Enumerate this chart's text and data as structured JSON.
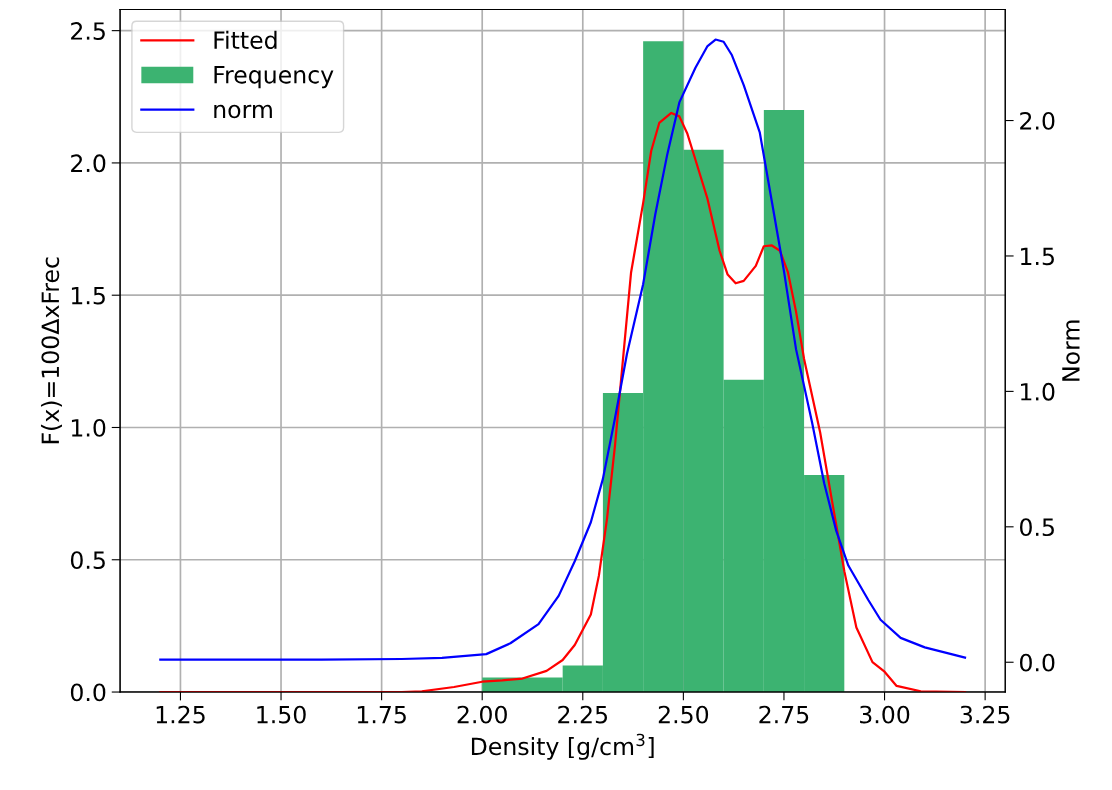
{
  "chart_data": {
    "type": "histogram",
    "xlabel": "Density [g/cm$^{3}$]",
    "ylabel": "F(x)=100ΔxFrec",
    "y2label": "Norm",
    "xlim": [
      1.1,
      3.3
    ],
    "xticks": [
      {
        "value": 1.25,
        "label": "1.25"
      },
      {
        "value": 1.5,
        "label": "1.50"
      },
      {
        "value": 1.75,
        "label": "1.75"
      },
      {
        "value": 2.0,
        "label": "2.00"
      },
      {
        "value": 2.25,
        "label": "2.25"
      },
      {
        "value": 2.5,
        "label": "2.50"
      },
      {
        "value": 2.75,
        "label": "2.75"
      },
      {
        "value": 3.0,
        "label": "3.00"
      },
      {
        "value": 3.25,
        "label": "3.25"
      }
    ],
    "ylim": [
      0,
      2.58
    ],
    "yticks": [
      {
        "value": 0,
        "label": "0.0"
      },
      0.5,
      {
        "value": 1,
        "label": "1.0"
      },
      1.5,
      {
        "value": 2,
        "label": "2.0"
      },
      2.5
    ],
    "y2lim": [
      -0.11,
      2.41
    ],
    "y2ticks": [
      {
        "value": 0,
        "label": "0.0"
      },
      0.5,
      {
        "value": 1,
        "label": "1.0"
      },
      1.5,
      {
        "value": 2,
        "label": "2.0"
      }
    ],
    "grid": true,
    "legend": "top left",
    "series": [
      {
        "type": "line",
        "name": "Fitted",
        "color": "#ff0000",
        "x": [
          1.2,
          1.5,
          1.8,
          1.85,
          1.93,
          2.0,
          2.05,
          2.1,
          2.16,
          2.2,
          2.23,
          2.27,
          2.29,
          2.31,
          2.33,
          2.35,
          2.37,
          2.4,
          2.42,
          2.44,
          2.47,
          2.49,
          2.51,
          2.53,
          2.56,
          2.59,
          2.61,
          2.63,
          2.65,
          2.68,
          2.7,
          2.72,
          2.74,
          2.76,
          2.78,
          2.8,
          2.84,
          2.87,
          2.9,
          2.93,
          2.97,
          3.0,
          3.03,
          3.09,
          3.2
        ],
        "values": [
          0,
          0,
          0,
          0.003,
          0.019,
          0.039,
          0.044,
          0.051,
          0.08,
          0.121,
          0.178,
          0.293,
          0.44,
          0.653,
          0.931,
          1.259,
          1.586,
          1.848,
          2.045,
          2.151,
          2.189,
          2.176,
          2.11,
          2.012,
          1.864,
          1.668,
          1.578,
          1.545,
          1.554,
          1.611,
          1.685,
          1.688,
          1.668,
          1.586,
          1.438,
          1.259,
          0.981,
          0.718,
          0.457,
          0.244,
          0.113,
          0.077,
          0.023,
          0.003,
          0
        ]
      },
      {
        "type": "histogram",
        "name": "Frequency",
        "color": "#3cb371",
        "bins": [
          2.0,
          2.2,
          2.3,
          2.4,
          2.5,
          2.6,
          2.7,
          2.8,
          2.9
        ],
        "values": [
          0.055,
          0.1,
          1.13,
          2.46,
          2.05,
          1.18,
          2.2,
          0.82
        ]
      },
      {
        "type": "line",
        "name": "norm",
        "axis": "y2",
        "color": "#0000ff",
        "x": [
          1.2,
          1.6,
          1.8,
          1.9,
          2.01,
          2.07,
          2.14,
          2.19,
          2.23,
          2.27,
          2.3,
          2.33,
          2.36,
          2.4,
          2.43,
          2.46,
          2.49,
          2.53,
          2.56,
          2.58,
          2.6,
          2.62,
          2.65,
          2.69,
          2.72,
          2.75,
          2.78,
          2.82,
          2.85,
          2.88,
          2.91,
          2.96,
          2.99,
          3.04,
          3.1,
          3.2
        ],
        "values": [
          0.01,
          0.01,
          0.012,
          0.016,
          0.03,
          0.07,
          0.141,
          0.245,
          0.373,
          0.517,
          0.677,
          0.901,
          1.14,
          1.396,
          1.652,
          1.875,
          2.067,
          2.195,
          2.275,
          2.299,
          2.291,
          2.243,
          2.131,
          1.955,
          1.7,
          1.444,
          1.156,
          0.884,
          0.661,
          0.485,
          0.357,
          0.229,
          0.157,
          0.09,
          0.055,
          0.017
        ]
      }
    ]
  }
}
